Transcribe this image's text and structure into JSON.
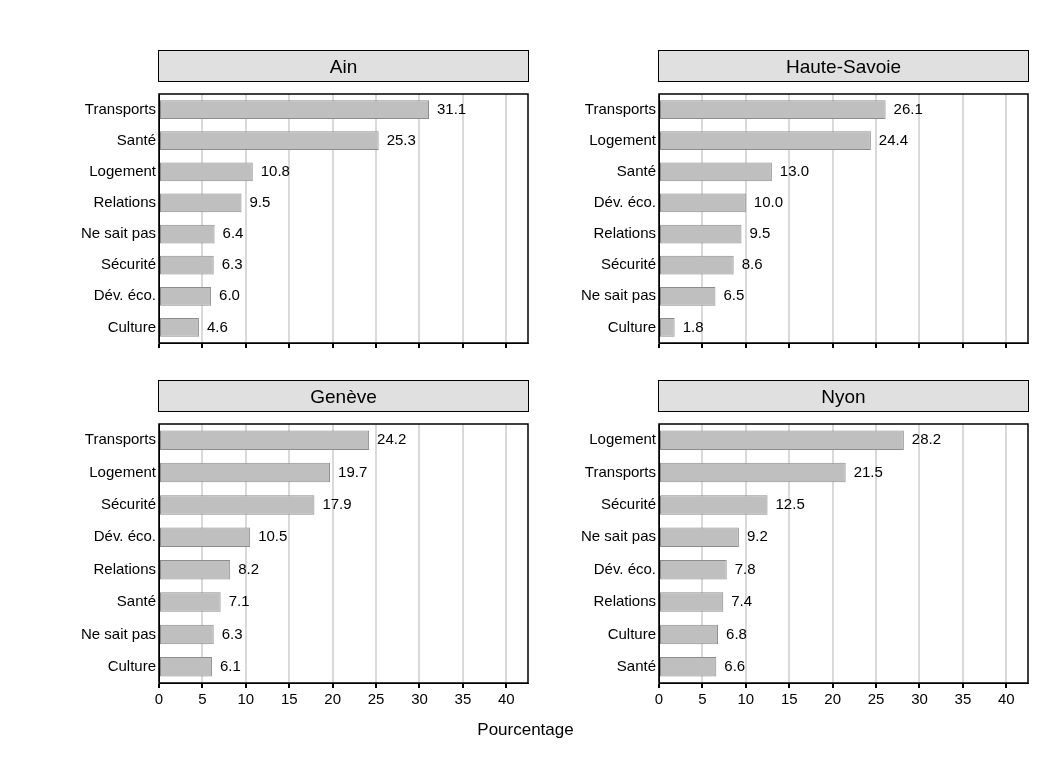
{
  "chart_data": [
    {
      "type": "bar",
      "orientation": "horizontal",
      "title": "Ain",
      "categories": [
        "Transports",
        "Santé",
        "Logement",
        "Relations",
        "Ne sait pas",
        "Sécurité",
        "Dév. éco.",
        "Culture"
      ],
      "values": [
        31.1,
        25.3,
        10.8,
        9.5,
        6.4,
        6.3,
        6.0,
        4.6
      ],
      "value_labels": [
        "31.1",
        "25.3",
        "10.8",
        "9.5",
        "6.4",
        "6.3",
        "6.0",
        "4.6"
      ],
      "color": "#bfbfbf",
      "xlim": [
        0,
        42.5
      ],
      "xticks": [
        0,
        5,
        10,
        15,
        20,
        25,
        30,
        35,
        40
      ],
      "grid": "x",
      "legend": false,
      "tick_labels": "y"
    },
    {
      "type": "bar",
      "orientation": "horizontal",
      "title": "Haute-Savoie",
      "categories": [
        "Transports",
        "Logement",
        "Santé",
        "Dév. éco.",
        "Relations",
        "Sécurité",
        "Ne sait pas",
        "Culture"
      ],
      "values": [
        26.1,
        24.4,
        13.0,
        10.0,
        9.5,
        8.6,
        6.5,
        1.8
      ],
      "value_labels": [
        "26.1",
        "24.4",
        "13.0",
        "10.0",
        "9.5",
        "8.6",
        "6.5",
        "1.8"
      ],
      "color": "#bfbfbf",
      "xlim": [
        0,
        42.5
      ],
      "xticks": [
        0,
        5,
        10,
        15,
        20,
        25,
        30,
        35,
        40
      ],
      "grid": "x",
      "legend": false,
      "tick_labels": "y"
    },
    {
      "type": "bar",
      "orientation": "horizontal",
      "title": "Genève",
      "xlabel": "Pourcentage",
      "categories": [
        "Transports",
        "Logement",
        "Sécurité",
        "Dév. éco.",
        "Relations",
        "Santé",
        "Ne sait pas",
        "Culture"
      ],
      "values": [
        24.2,
        19.7,
        17.9,
        10.5,
        8.2,
        7.1,
        6.3,
        6.1
      ],
      "value_labels": [
        "24.2",
        "19.7",
        "17.9",
        "10.5",
        "8.2",
        "7.1",
        "6.3",
        "6.1"
      ],
      "color": "#bfbfbf",
      "xlim": [
        0,
        42.5
      ],
      "xticks": [
        0,
        5,
        10,
        15,
        20,
        25,
        30,
        35,
        40
      ],
      "grid": "x",
      "legend": false
    },
    {
      "type": "bar",
      "orientation": "horizontal",
      "title": "Nyon",
      "categories": [
        "Logement",
        "Transports",
        "Sécurité",
        "Ne sait pas",
        "Dév. éco.",
        "Relations",
        "Culture",
        "Santé"
      ],
      "values": [
        28.2,
        21.5,
        12.5,
        9.2,
        7.8,
        7.4,
        6.8,
        6.6
      ],
      "value_labels": [
        "28.2",
        "21.5",
        "12.5",
        "9.2",
        "7.8",
        "7.4",
        "6.8",
        "6.6"
      ],
      "color": "#bfbfbf",
      "xlim": [
        0,
        42.5
      ],
      "xticks": [
        0,
        5,
        10,
        15,
        20,
        25,
        30,
        35,
        40
      ],
      "grid": "x",
      "legend": false
    }
  ]
}
